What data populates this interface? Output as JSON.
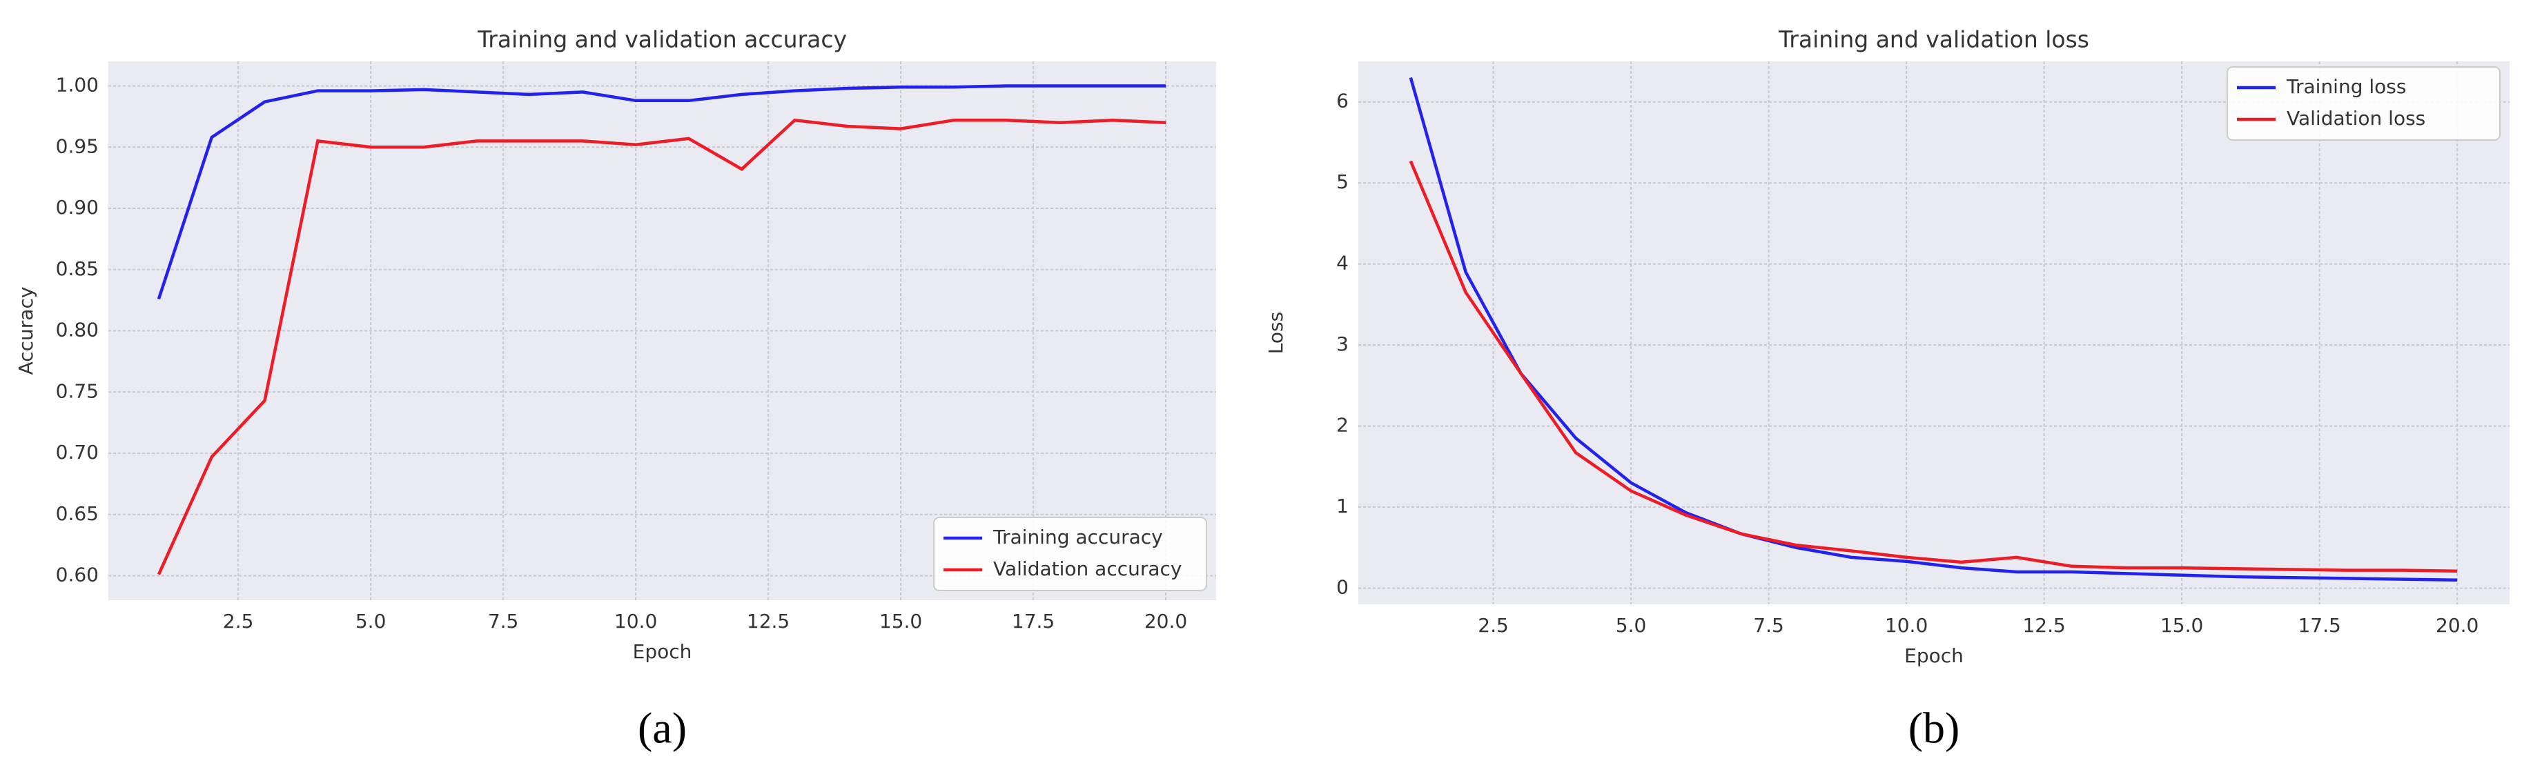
{
  "chart_data": [
    {
      "type": "line",
      "title": "Training and validation accuracy",
      "x_label": "Epoch",
      "y_label": "Accuracy",
      "panel_label": "(a)",
      "x": [
        1,
        2,
        3,
        4,
        5,
        6,
        7,
        8,
        9,
        10,
        11,
        12,
        13,
        14,
        15,
        16,
        17,
        18,
        19,
        20
      ],
      "series": [
        {
          "name": "Training accuracy",
          "color": "#2222ee",
          "values": [
            0.826,
            0.958,
            0.987,
            0.996,
            0.996,
            0.997,
            0.995,
            0.993,
            0.995,
            0.988,
            0.988,
            0.993,
            0.996,
            0.998,
            0.999,
            0.999,
            1.0,
            1.0,
            1.0,
            1.0
          ]
        },
        {
          "name": "Validation accuracy",
          "color": "#ee1c24",
          "values": [
            0.601,
            0.697,
            0.743,
            0.955,
            0.95,
            0.95,
            0.955,
            0.955,
            0.955,
            0.952,
            0.957,
            0.932,
            0.972,
            0.967,
            0.965,
            0.972,
            0.972,
            0.97,
            0.972,
            0.97
          ]
        }
      ],
      "xlim": [
        0.05,
        20.95
      ],
      "ylim": [
        0.58,
        1.02
      ],
      "xticks": [
        2.5,
        {
          "value": 5,
          "label": "5.0"
        },
        7.5,
        {
          "value": 10,
          "label": "10.0"
        },
        12.5,
        {
          "value": 15,
          "label": "15.0"
        },
        17.5,
        {
          "value": 20,
          "label": "20.0"
        }
      ],
      "yticks": [
        {
          "value": 0.6,
          "label": "0.60"
        },
        0.65,
        {
          "value": 0.7,
          "label": "0.70"
        },
        0.75,
        {
          "value": 0.8,
          "label": "0.80"
        },
        0.85,
        {
          "value": 0.9,
          "label": "0.90"
        },
        0.95,
        {
          "value": 1,
          "label": "1.00"
        }
      ],
      "grid": true,
      "legend": "lower right"
    },
    {
      "type": "line",
      "title": "Training and validation loss",
      "x_label": "Epoch",
      "y_label": "Loss",
      "panel_label": "(b)",
      "x": [
        1,
        2,
        3,
        4,
        5,
        6,
        7,
        8,
        9,
        10,
        11,
        12,
        13,
        14,
        15,
        16,
        17,
        18,
        19,
        20
      ],
      "series": [
        {
          "name": "Training loss",
          "color": "#2222ee",
          "values": [
            6.3,
            3.9,
            2.65,
            1.85,
            1.3,
            0.93,
            0.67,
            0.5,
            0.38,
            0.33,
            0.25,
            0.2,
            0.2,
            0.18,
            0.16,
            0.14,
            0.13,
            0.12,
            0.11,
            0.1
          ]
        },
        {
          "name": "Validation loss",
          "color": "#ee1c24",
          "values": [
            5.27,
            3.65,
            2.65,
            1.67,
            1.2,
            0.9,
            0.67,
            0.53,
            0.46,
            0.38,
            0.32,
            0.38,
            0.27,
            0.25,
            0.25,
            0.24,
            0.23,
            0.22,
            0.22,
            0.21
          ]
        }
      ],
      "xlim": [
        0.05,
        20.95
      ],
      "ylim": [
        -0.2,
        6.5
      ],
      "xticks": [
        2.5,
        {
          "value": 5,
          "label": "5.0"
        },
        7.5,
        {
          "value": 10,
          "label": "10.0"
        },
        12.5,
        {
          "value": 15,
          "label": "15.0"
        },
        17.5,
        {
          "value": 20,
          "label": "20.0"
        }
      ],
      "yticks": [
        0,
        1,
        2,
        3,
        4,
        5,
        6
      ],
      "grid": true,
      "legend": "upper right"
    }
  ]
}
